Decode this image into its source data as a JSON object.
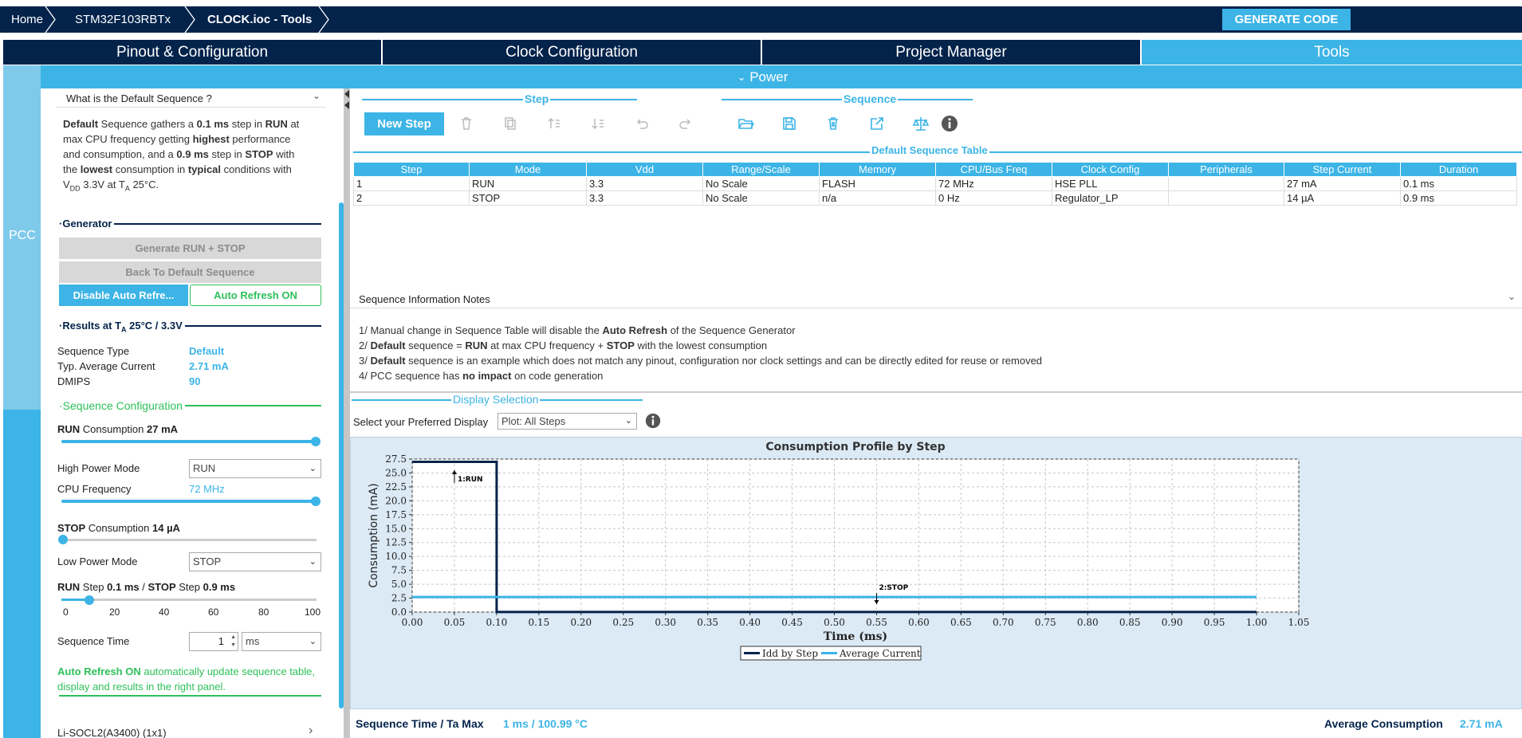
{
  "breadcrumb": [
    "Home",
    "STM32F103RBTx",
    "CLOCK.ioc - Tools"
  ],
  "generate_code": "GENERATE CODE",
  "tabs": [
    "Pinout & Configuration",
    "Clock Configuration",
    "Project Manager",
    "Tools"
  ],
  "power_label": "Power",
  "rail_label": "PCC",
  "left": {
    "faq_title": "What is the Default Sequence ?",
    "desc": {
      "l1a": "Default",
      "l1b": " Sequence gathers a ",
      "l1c": "0.1 ms",
      "l1d": " step in ",
      "l1e": "RUN",
      "l1f": " at",
      "l2a": "max CPU frequency getting ",
      "l2b": "highest",
      "l2c": " performance",
      "l3a": "and consumption, and a ",
      "l3b": "0.9 ms",
      "l3c": " step in ",
      "l3d": "STOP",
      "l3e": " with",
      "l4a": "the ",
      "l4b": "lowest",
      "l4c": " consumption in ",
      "l4d": "typical",
      "l4e": " conditions with",
      "l5a": "V",
      "l5b": "DD",
      "l5c": " 3.3V at T",
      "l5d": "A",
      "l5e": " 25°C."
    },
    "generator_title": "Generator",
    "btn_generate": "Generate RUN + STOP",
    "btn_back": "Back To Default Sequence",
    "btn_disable": "Disable Auto Refre...",
    "btn_autorefresh": "Auto Refresh ON",
    "results_a": "Results at T",
    "results_b": "A",
    "results_c": " 25°C / 3.3V",
    "results": [
      {
        "label": "Sequence Type",
        "value": "Default"
      },
      {
        "label": "Typ. Average Current",
        "value": "2.71 mA"
      },
      {
        "label": "DMIPS",
        "value": "90"
      }
    ],
    "seqconf_title": "Sequence Configuration",
    "run_cons_a": "RUN",
    "run_cons_b": " Consumption ",
    "run_cons_c": "27 mA",
    "high_power_label": "High Power Mode",
    "high_power_value": "RUN",
    "cpu_freq_label": "CPU Frequency",
    "cpu_freq_value": "72 MHz",
    "stop_cons_a": "STOP",
    "stop_cons_b": " Consumption ",
    "stop_cons_c": "14 µA",
    "low_power_label": "Low Power Mode",
    "low_power_value": "STOP",
    "step_a": "RUN",
    "step_b": " Step ",
    "step_c": "0.1 ms",
    "step_d": " / ",
    "step_e": "STOP",
    "step_f": " Step ",
    "step_g": "0.9 ms",
    "step_ticks": [
      "0",
      "20",
      "40",
      "60",
      "80",
      "100"
    ],
    "seq_time_label": "Sequence Time",
    "seq_time_value": "1",
    "seq_time_unit": "ms",
    "auto_note_a": "Auto Refresh ON",
    "auto_note_b": " automatically update sequence table,",
    "auto_note_c": "display and results in the right panel.",
    "battery": "Li-SOCL2(A3400) (1x1)"
  },
  "right": {
    "step_group": "Step",
    "sequence_group": "Sequence",
    "new_step": "New Step",
    "table_title": "Default Sequence Table",
    "columns": [
      "Step",
      "Mode",
      "Vdd",
      "Range/Scale",
      "Memory",
      "CPU/Bus Freq",
      "Clock Config",
      "Peripherals",
      "Step Current",
      "Duration"
    ],
    "rows": [
      [
        "1",
        "RUN",
        "3.3",
        "No Scale",
        "FLASH",
        "72 MHz",
        "HSE PLL",
        "",
        "27 mA",
        "0.1 ms"
      ],
      [
        "2",
        "STOP",
        "3.3",
        "No Scale",
        "n/a",
        "0 Hz",
        "Regulator_LP",
        "",
        "14 µA",
        "0.9 ms"
      ]
    ],
    "notes_title": "Sequence Information Notes",
    "notes": {
      "n1a": "1/ Manual change in Sequence Table will disable the ",
      "n1b": "Auto Refresh",
      "n1c": " of the Sequence Generator",
      "n2a": "2/ ",
      "n2b": "Default",
      "n2c": " sequence = ",
      "n2d": "RUN",
      "n2e": " at max CPU frequency + ",
      "n2f": "STOP",
      "n2g": " with the lowest consumption",
      "n3a": "3/ ",
      "n3b": "Default",
      "n3c": " sequence is an example which does not match any pinout, configuration nor clock settings and can be directly edited for reuse or removed",
      "n4a": "4/ PCC sequence has ",
      "n4b": "no impact",
      "n4c": " on code generation"
    },
    "display_title": "Display Selection",
    "display_label": "Select your Preferred Display",
    "display_value": "Plot: All Steps",
    "seq_time_ta_label": "Sequence Time / Ta Max",
    "seq_time_ta_value": "1 ms / 100.99 °C",
    "avg_cons_label": "Average Consumption",
    "avg_cons_value": "2.71 mA"
  },
  "chart_data": {
    "type": "line",
    "title": "Consumption Profile by Step",
    "xlabel": "Time (ms)",
    "ylabel": "Consumption (mA)",
    "xlim": [
      0,
      1.05
    ],
    "ylim": [
      0,
      27.5
    ],
    "xticks": [
      "0.00",
      "0.05",
      "0.10",
      "0.15",
      "0.20",
      "0.25",
      "0.30",
      "0.35",
      "0.40",
      "0.45",
      "0.50",
      "0.55",
      "0.60",
      "0.65",
      "0.70",
      "0.75",
      "0.80",
      "0.85",
      "0.90",
      "0.95",
      "1.00",
      "1.05"
    ],
    "yticks": [
      "0.0",
      "2.5",
      "5.0",
      "7.5",
      "10.0",
      "12.5",
      "15.0",
      "17.5",
      "20.0",
      "22.5",
      "25.0",
      "27.5"
    ],
    "grid": true,
    "legend_position": "bottom",
    "series": [
      {
        "name": "Idd by Step",
        "color": "#03234b",
        "x": [
          0,
          0.1,
          0.1,
          1.0
        ],
        "y": [
          27,
          27,
          0.014,
          0.014
        ]
      },
      {
        "name": "Average Current",
        "color": "#3cb4e6",
        "x": [
          0,
          1.0
        ],
        "y": [
          2.71,
          2.71
        ]
      }
    ],
    "annotations": [
      {
        "text": "1:RUN",
        "x": 0.05,
        "y": 25.5
      },
      {
        "text": "2:STOP",
        "x": 0.55,
        "y": 2.0
      }
    ]
  }
}
